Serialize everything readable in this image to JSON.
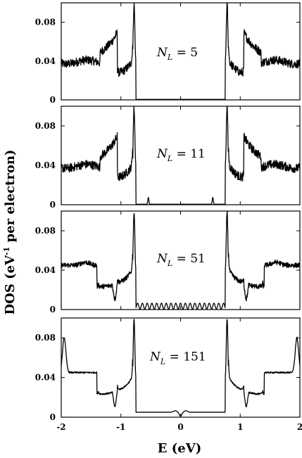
{
  "chart_data": {
    "type": "line",
    "xlabel": "E (eV)",
    "ylabel_main": "DOS (eV",
    "ylabel_sup": "-1",
    "ylabel_rest": " per electron)",
    "x_ticks": [
      "-2",
      "-1",
      "0",
      "1",
      "2"
    ],
    "xlim": [
      -2,
      2
    ],
    "ylim": [
      0,
      0.1
    ],
    "y_ticks": [
      "0",
      "0.04",
      "0.08"
    ],
    "line_color": "#000000",
    "panels": [
      {
        "label_var": "N",
        "label_sub": "L",
        "label_rest": " = 5",
        "n_layers": 5
      },
      {
        "label_var": "N",
        "label_sub": "L",
        "label_rest": " = 11",
        "n_layers": 11
      },
      {
        "label_var": "N",
        "label_sub": "L",
        "label_rest": " = 51",
        "n_layers": 51
      },
      {
        "label_var": "N",
        "label_sub": "L",
        "label_rest": " = 151",
        "n_layers": 151
      }
    ]
  }
}
